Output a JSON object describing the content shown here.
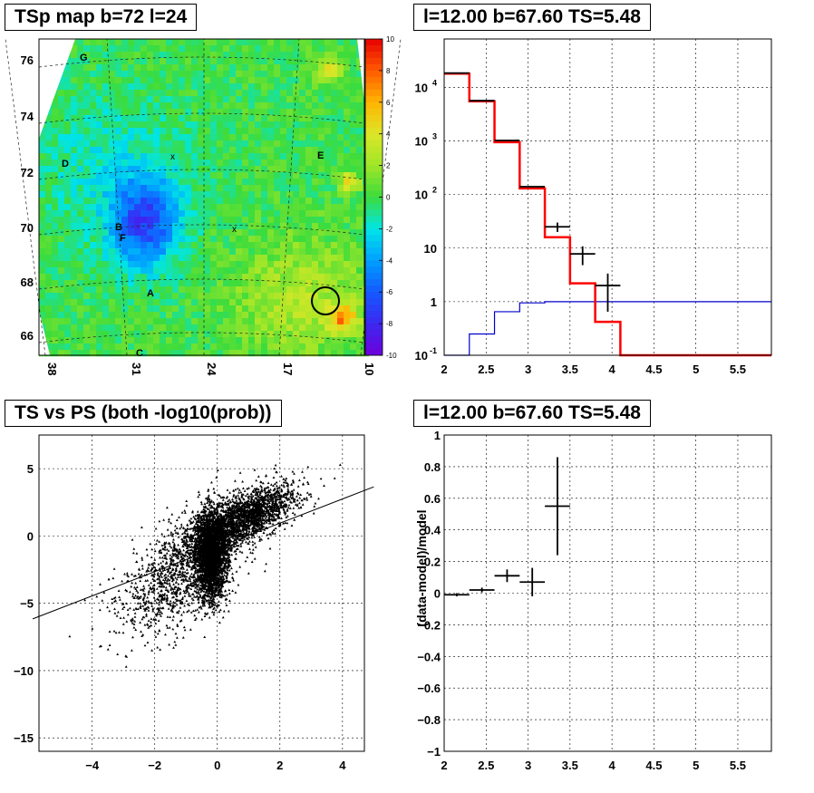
{
  "panels": {
    "tsmap": {
      "title": "TSp map b=72 l=24"
    },
    "spectrum": {
      "title": "l=12.00 b=67.60 TS=5.48"
    },
    "tsvsps": {
      "title": "TS vs PS (both -log10(prob))"
    },
    "residual": {
      "title": "l=12.00 b=67.60 TS=5.48"
    }
  },
  "colors": {
    "model": "#ff0000",
    "background": "#0000cc",
    "data": "#000000"
  },
  "chart_data": [
    {
      "type": "heatmap",
      "title": "TSp map b=72 l=24",
      "x_ticks": [
        "38",
        "31",
        "24",
        "17",
        "10"
      ],
      "y_ticks": [
        "66",
        "68",
        "70",
        "72",
        "74",
        "76"
      ],
      "colorbar": {
        "range": [
          -10,
          10
        ],
        "ticks": [
          "10",
          "8",
          "6",
          "4",
          "2",
          "0",
          "-2",
          "-4",
          "-6",
          "-8",
          "-10"
        ]
      },
      "source_labels": [
        "G",
        "D",
        "E",
        "B",
        "F",
        "A",
        "C"
      ],
      "markers": [
        "x",
        "x"
      ],
      "highlight_circle": true
    },
    {
      "type": "line",
      "title": "l=12.00 b=67.60 TS=5.48",
      "xlim": [
        2,
        5.9
      ],
      "ylim": [
        0.1,
        80000
      ],
      "log_y": true,
      "grid": true,
      "x_ticks": [
        "2",
        "2.5",
        "3",
        "3.5",
        "4",
        "4.5",
        "5",
        "5.5"
      ],
      "series": [
        {
          "values": [
            [
              2.0,
              18000
            ],
            [
              2.3,
              5500
            ],
            [
              2.6,
              950
            ],
            [
              2.9,
              130
            ],
            [
              3.2,
              16
            ],
            [
              3.5,
              2.2
            ],
            [
              3.8,
              0.42
            ],
            [
              4.1,
              0.1
            ],
            [
              4.4,
              0.1
            ],
            [
              5.9,
              0.1
            ]
          ]
        },
        {
          "values": [
            [
              2.0,
              0.1
            ],
            [
              2.3,
              0.25
            ],
            [
              2.6,
              0.65
            ],
            [
              2.9,
              0.95
            ],
            [
              3.2,
              1.0
            ],
            [
              5.9,
              1.0
            ]
          ]
        },
        {
          "values": [
            [
              2.15,
              18500,
              0.15,
              0
            ],
            [
              2.45,
              5650,
              0.15,
              0
            ],
            [
              2.75,
              1020,
              0.15,
              0
            ],
            [
              3.05,
              140,
              0.15,
              0
            ],
            [
              3.35,
              25,
              0.15,
              5
            ],
            [
              3.65,
              7.8,
              0.15,
              3
            ],
            [
              3.95,
              2.0,
              0.15,
              1.35
            ]
          ]
        }
      ]
    },
    {
      "type": "scatter",
      "title": "TS vs PS (both -log10(prob))",
      "xlim": [
        -5.7,
        4.7
      ],
      "ylim": [
        -16,
        7.5
      ],
      "grid": true,
      "x_ticks": [
        "-4",
        "-2",
        "0",
        "2",
        "4"
      ],
      "y_ticks": [
        "5",
        "0",
        "-5",
        "-10",
        "-15"
      ],
      "fit_line": {
        "slope": 0.9,
        "intercept": -0.85
      },
      "n_points": 6000
    },
    {
      "type": "scatter",
      "title": "l=12.00 b=67.60 TS=5.48",
      "ylabel": "(data-model)/model",
      "xlim": [
        2,
        5.9
      ],
      "ylim": [
        -1,
        1
      ],
      "grid": true,
      "x_ticks": [
        "2",
        "2.5",
        "3",
        "3.5",
        "4",
        "4.5",
        "5",
        "5.5"
      ],
      "y_ticks": [
        "1",
        "0.8",
        "0.6",
        "0.4",
        "0.2",
        "0",
        "-0.2",
        "-0.4",
        "-0.6",
        "-0.8",
        "-1"
      ],
      "points": [
        {
          "x": 2.15,
          "y": -0.01,
          "xerr": 0.15,
          "yerr": 0.01
        },
        {
          "x": 2.45,
          "y": 0.02,
          "xerr": 0.15,
          "yerr": 0.015
        },
        {
          "x": 2.75,
          "y": 0.11,
          "xerr": 0.15,
          "yerr": 0.04
        },
        {
          "x": 3.05,
          "y": 0.07,
          "xerr": 0.15,
          "yerr": 0.09
        },
        {
          "x": 3.35,
          "y": 0.55,
          "xerr": 0.15,
          "yerr": 0.31
        }
      ]
    }
  ]
}
